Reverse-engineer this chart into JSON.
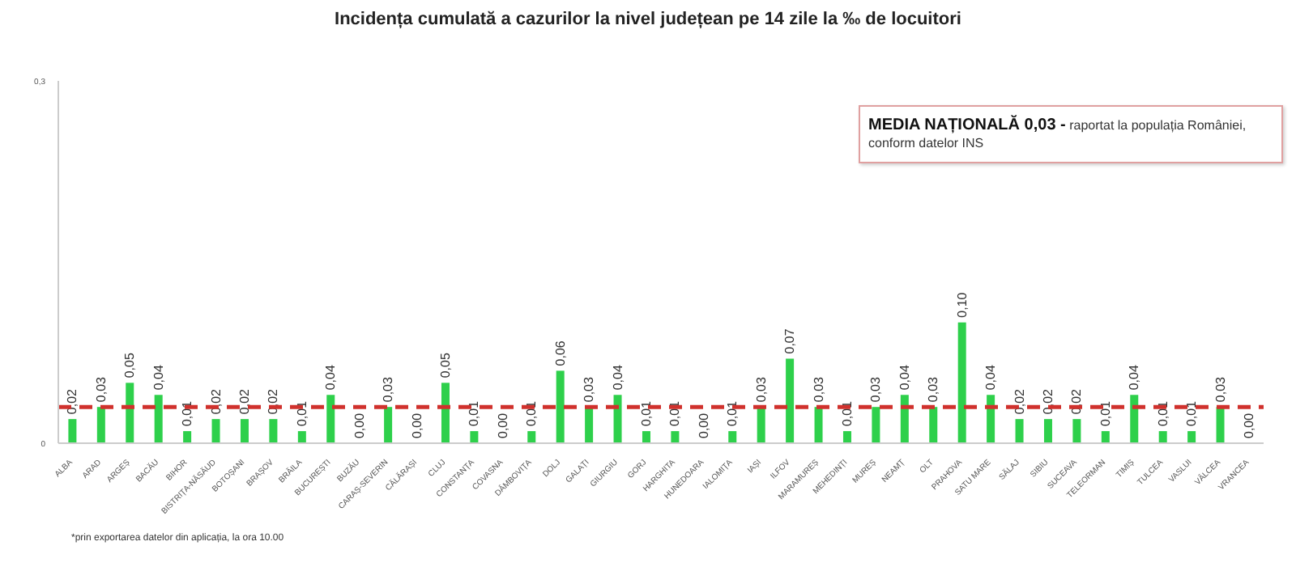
{
  "chart_data": {
    "type": "bar",
    "title": "Incidența cumulată a cazurilor la nivel județean pe 14 zile la ‰ de locuitori",
    "categories": [
      "ALBA",
      "ARAD",
      "ARGEȘ",
      "BACĂU",
      "BIHOR",
      "BISTRIȚA-NĂSĂUD",
      "BOTOȘANI",
      "BRAȘOV",
      "BRĂILA",
      "BUCUREȘTI",
      "BUZĂU",
      "CARAȘ-SEVERIN",
      "CĂLĂRAȘI",
      "CLUJ",
      "CONSTANȚA",
      "COVASNA",
      "DÂMBOVIȚA",
      "DOLJ",
      "GALAȚI",
      "GIURGIU",
      "GORJ",
      "HARGHITA",
      "HUNEDOARA",
      "IALOMIȚA",
      "IAȘI",
      "ILFOV",
      "MARAMUREȘ",
      "MEHEDINȚI",
      "MUREȘ",
      "NEAMȚ",
      "OLT",
      "PRAHOVA",
      "SATU MARE",
      "SĂLAJ",
      "SIBIU",
      "SUCEAVA",
      "TELEORMAN",
      "TIMIȘ",
      "TULCEA",
      "VASLUI",
      "VÂLCEA",
      "VRANCEA"
    ],
    "values": [
      0.02,
      0.03,
      0.05,
      0.04,
      0.01,
      0.02,
      0.02,
      0.02,
      0.01,
      0.04,
      0.0,
      0.03,
      0.0,
      0.05,
      0.01,
      0.0,
      0.01,
      0.06,
      0.03,
      0.04,
      0.01,
      0.01,
      0.0,
      0.01,
      0.03,
      0.07,
      0.03,
      0.01,
      0.03,
      0.04,
      0.03,
      0.1,
      0.04,
      0.02,
      0.02,
      0.02,
      0.01,
      0.04,
      0.01,
      0.01,
      0.03,
      0.0
    ],
    "value_labels": [
      "0,02",
      "0,03",
      "0,05",
      "0,04",
      "0,01",
      "0,02",
      "0,02",
      "0,02",
      "0,01",
      "0,04",
      "0,00",
      "0,03",
      "0,00",
      "0,05",
      "0,01",
      "0,00",
      "0,01",
      "0,06",
      "0,03",
      "0,04",
      "0,01",
      "0,01",
      "0,00",
      "0,01",
      "0,03",
      "0,07",
      "0,03",
      "0,01",
      "0,03",
      "0,04",
      "0,03",
      "0,10",
      "0,04",
      "0,02",
      "0,02",
      "0,02",
      "0,01",
      "0,04",
      "0,01",
      "0,01",
      "0,03",
      "0,00"
    ],
    "color": "#2ed04b",
    "ylim": [
      0,
      0.3
    ],
    "yticks": [
      {
        "value": 0,
        "label": "0"
      },
      {
        "value": 0.3,
        "label": "0,3"
      }
    ],
    "ref_lines": [
      {
        "axis": "y",
        "value": 0.03,
        "color": "#d0312d",
        "line_style": "dashed"
      }
    ],
    "annotations": [
      "MEDIA NAȚIONALĂ  0,03 -",
      "raportat la populația României, conform datelor INS",
      "*prin exportarea datelor din aplicația, la ora 10.00"
    ]
  }
}
